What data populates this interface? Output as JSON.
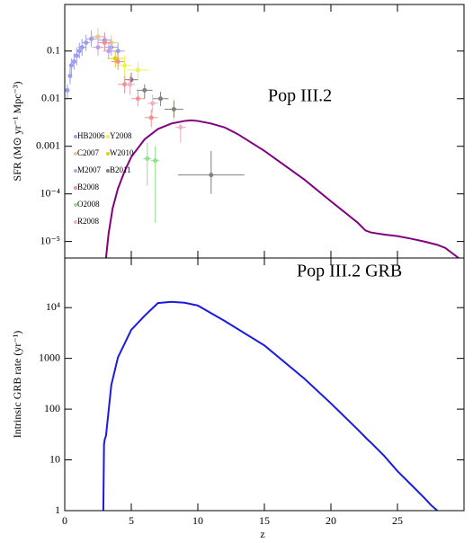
{
  "chart_data": [
    {
      "type": "line",
      "ylabel": "SFR (M⊙ yr⁻¹ Mpc⁻³)",
      "ylog": true,
      "xlim": [
        0,
        30
      ],
      "xticks": [
        0,
        5,
        10,
        15,
        20,
        25
      ],
      "ylim": [
        4.5e-06,
        0.95
      ],
      "yticks": [
        0.1,
        0.01,
        0.001,
        {
          "value": 0.0001,
          "label": "10⁻⁴"
        },
        {
          "value": 1e-05,
          "label": "10⁻⁵"
        }
      ],
      "annotation": "Pop III.2",
      "series": [
        {
          "color": "#800080",
          "x": [
            3.1,
            3.3,
            3.6,
            4,
            4.5,
            5,
            6,
            7,
            8,
            9,
            9.5,
            10,
            11,
            12,
            13,
            15,
            18,
            20,
            22,
            22.6,
            23,
            24,
            25,
            26,
            27,
            28,
            28.6,
            29,
            29.6
          ],
          "values": [
            4.5e-06,
            1.5e-05,
            5e-05,
            0.00013,
            0.0003,
            0.0006,
            0.0014,
            0.0023,
            0.003,
            0.0034,
            0.0035,
            0.0034,
            0.003,
            0.0025,
            0.0018,
            0.0008,
            0.0002,
            7e-05,
            2.5e-05,
            1.7e-05,
            1.55e-05,
            1.4e-05,
            1.3e-05,
            1.15e-05,
            1e-05,
            8.5e-06,
            7.3e-06,
            6e-06,
            4.5e-06
          ]
        }
      ],
      "observations": [
        {
          "name": "HB2006",
          "color": "#9c9cf0",
          "x": [
            0.2,
            0.4,
            0.5,
            0.7,
            0.9,
            1.1,
            1.3,
            1.6,
            2,
            2.5,
            3,
            3.5,
            4
          ],
          "values": [
            0.015,
            0.03,
            0.05,
            0.06,
            0.08,
            0.1,
            0.12,
            0.15,
            0.18,
            0.2,
            0.17,
            0.12,
            0.1
          ],
          "ylo": [
            0.01,
            0.02,
            0.03,
            0.04,
            0.05,
            0.07,
            0.08,
            0.1,
            0.12,
            0.13,
            0.11,
            0.08,
            0.06
          ],
          "yhi": [
            0.02,
            0.045,
            0.07,
            0.09,
            0.12,
            0.15,
            0.18,
            0.22,
            0.27,
            0.3,
            0.25,
            0.18,
            0.15
          ],
          "xerr": [
            0.1,
            0.1,
            0.2,
            0.2,
            0.2,
            0.2,
            0.3,
            0.3,
            0.4,
            0.5,
            0.5,
            0.5,
            0.5
          ]
        },
        {
          "name": "Y2008",
          "color": "#f0f050",
          "x": [
            4.5,
            5.5,
            8.2
          ],
          "values": [
            0.05,
            0.04,
            0.006
          ],
          "ylo": [
            0.03,
            0.025,
            0.003
          ],
          "yhi": [
            0.08,
            0.06,
            0.01
          ],
          "xerr": [
            0.5,
            0.8,
            0.6
          ]
        },
        {
          "name": "C2007",
          "color": "#e8c890",
          "x": [
            2.5,
            3.5
          ],
          "values": [
            0.2,
            0.15
          ],
          "ylo": [
            0.13,
            0.1
          ],
          "yhi": [
            0.3,
            0.22
          ],
          "xerr": [
            0.5,
            0.5
          ]
        },
        {
          "name": "W2010",
          "color": "#e0d000",
          "x": [
            3.8
          ],
          "values": [
            0.07
          ],
          "ylo": [
            0.045
          ],
          "yhi": [
            0.1
          ],
          "xerr": [
            0.6
          ]
        },
        {
          "name": "M2007",
          "color": "#c0a0e0",
          "x": [
            2.5,
            3.3
          ],
          "values": [
            0.12,
            0.1
          ],
          "ylo": [
            0.08,
            0.07
          ],
          "yhi": [
            0.18,
            0.15
          ],
          "xerr": [
            0.4,
            0.4
          ]
        },
        {
          "name": "B2011",
          "color": "#808080",
          "x": [
            5,
            6,
            7.2,
            8.2,
            11
          ],
          "values": [
            0.025,
            0.015,
            0.01,
            0.006,
            0.00025
          ],
          "ylo": [
            0.018,
            0.01,
            0.007,
            0.004,
            0.0001
          ],
          "yhi": [
            0.035,
            0.02,
            0.014,
            0.009,
            0.0008
          ],
          "xerr": [
            0.5,
            0.6,
            0.6,
            0.7,
            2.5
          ]
        },
        {
          "name": "B2008",
          "color": "#f09090",
          "x": [
            3,
            4,
            4.5,
            5.5,
            6.5
          ],
          "values": [
            0.15,
            0.06,
            0.02,
            0.01,
            0.004
          ],
          "ylo": [
            0.1,
            0.04,
            0.013,
            0.007,
            0.0025
          ],
          "yhi": [
            0.22,
            0.09,
            0.03,
            0.015,
            0.006
          ],
          "xerr": [
            0.5,
            0.5,
            0.5,
            0.5,
            0.5
          ]
        },
        {
          "name": "O2008",
          "color": "#90e090",
          "x": [
            6.2,
            6.8
          ],
          "values": [
            0.00055,
            0.0005
          ],
          "ylo": [
            0.00015,
            2.5e-05
          ],
          "yhi": [
            0.0012,
            0.001
          ],
          "xerr": [
            0.3,
            0.3
          ]
        },
        {
          "name": "R2008",
          "color": "#f0b0c0",
          "x": [
            4.9,
            6.6,
            8.7
          ],
          "values": [
            0.02,
            0.008,
            0.0025
          ],
          "ylo": [
            0.012,
            0.005,
            0.0012
          ],
          "yhi": [
            0.03,
            0.012,
            0.003
          ],
          "xerr": [
            0.4,
            0.4,
            0.4
          ]
        }
      ]
    },
    {
      "type": "line",
      "ylabel": "Intrinsic GRB rate (yr⁻¹)",
      "xlabel": "z",
      "ylog": true,
      "xlim": [
        0,
        30
      ],
      "xticks": [
        0,
        5,
        10,
        15,
        20,
        25
      ],
      "ylim": [
        1,
        95000
      ],
      "yticks": [
        {
          "value": 10000,
          "label": "10⁴"
        },
        1000,
        100,
        10,
        1
      ],
      "annotation": "Pop III.2 GRB",
      "series": [
        {
          "color": "#1a1ae0",
          "x": [
            2.9,
            2.95,
            3,
            3.1,
            3.5,
            4,
            5,
            6,
            7,
            8,
            9,
            10,
            12,
            15,
            18,
            20,
            22,
            22.7,
            23,
            24,
            25,
            26,
            27,
            27.5,
            28
          ],
          "values": [
            1,
            20,
            25,
            30,
            300,
            1050,
            3660,
            6900,
            12300,
            13000,
            12500,
            11000,
            5500,
            1800,
            400,
            130,
            40,
            26,
            22,
            12,
            6,
            3.3,
            1.8,
            1.3,
            1
          ]
        }
      ]
    }
  ]
}
